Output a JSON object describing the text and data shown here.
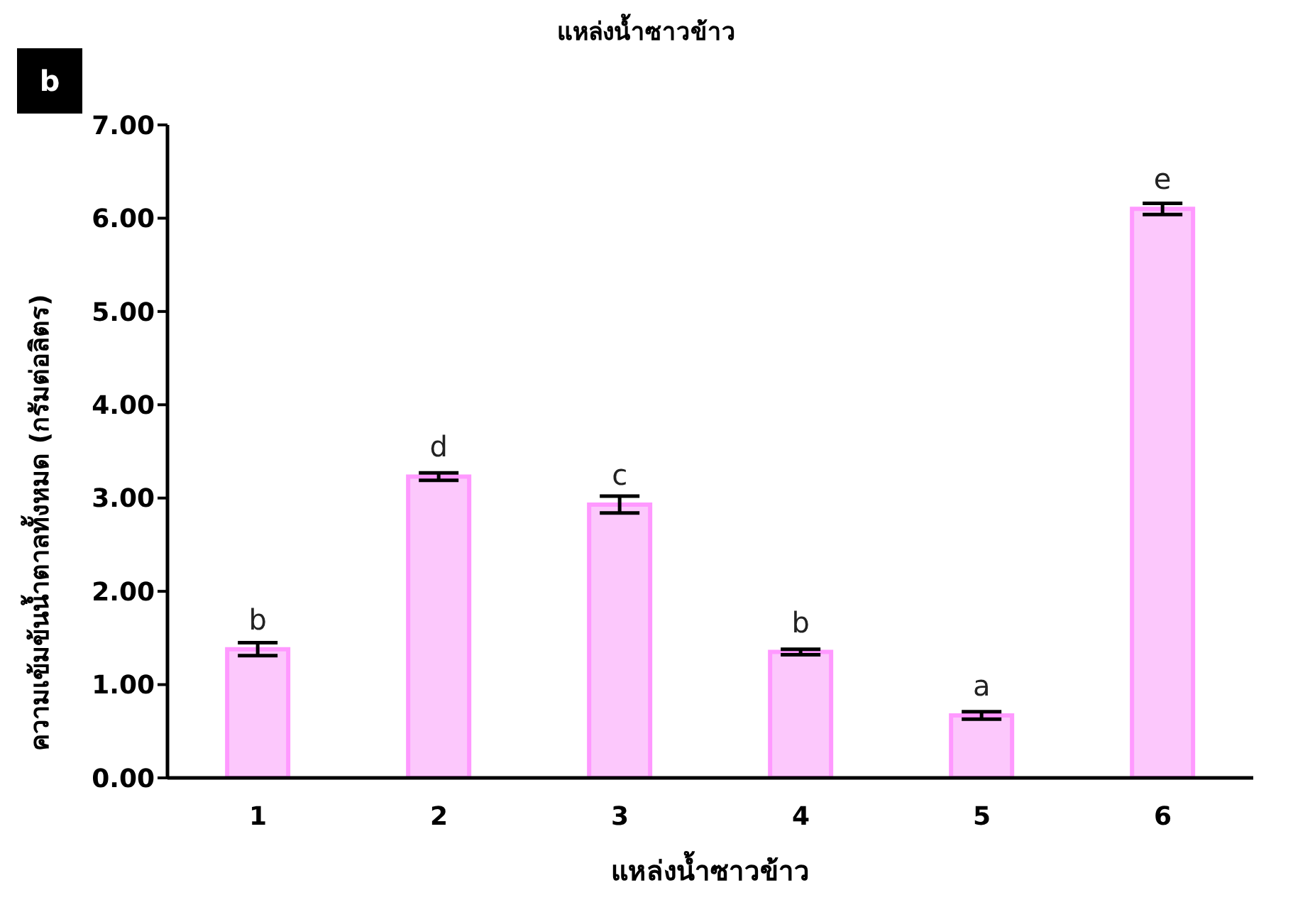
{
  "chart_data": {
    "type": "bar",
    "title": "แหล่งน้ำซาวข้าว",
    "xlabel": "แหล่งน้ำซาวข้าว",
    "ylabel": "ความเข้มข้นน้ำตาลทั้งหมด (กรัมต่อลิตร)",
    "annotations": [
      "b"
    ],
    "categories": [
      "1",
      "2",
      "3",
      "4",
      "5",
      "6"
    ],
    "values": [
      1.38,
      3.23,
      2.93,
      1.35,
      0.67,
      6.1
    ],
    "errors": [
      0.07,
      0.04,
      0.09,
      0.03,
      0.04,
      0.06
    ],
    "value_labels": [
      "b",
      "d",
      "c",
      "b",
      "a",
      "e"
    ],
    "color": "#fcc8fc",
    "ylim": [
      0,
      7
    ],
    "yticks": [
      {
        "value": 0,
        "label": "0.00"
      },
      {
        "value": 1,
        "label": "1.00"
      },
      {
        "value": 2,
        "label": "2.00"
      },
      {
        "value": 3,
        "label": "3.00"
      },
      {
        "value": 4,
        "label": "4.00"
      },
      {
        "value": 5,
        "label": "5.00"
      },
      {
        "value": 6,
        "label": "6.00"
      },
      {
        "value": 7,
        "label": "7.00"
      }
    ],
    "grid": false,
    "legend": false
  }
}
